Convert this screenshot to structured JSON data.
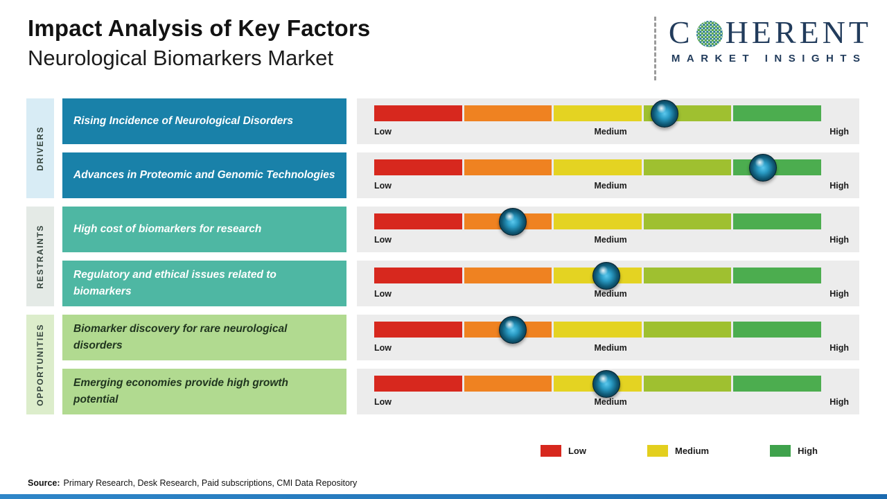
{
  "header": {
    "title": "Impact Analysis of Key Factors",
    "subtitle": "Neurological Biomarkers Market"
  },
  "logo": {
    "prefix": "C",
    "suffix": "HERENT",
    "subtitle": "MARKET INSIGHTS",
    "color": "#223c5c"
  },
  "scale": {
    "low": "Low",
    "medium": "Medium",
    "high": "High"
  },
  "bar_colors": [
    "#d7281e",
    "#ef8221",
    "#e4d322",
    "#9fc030",
    "#4cad4f"
  ],
  "chart_data": {
    "type": "scatter",
    "title": "Impact Analysis of Key Factors",
    "subtitle": "Neurological Biomarkers Market",
    "scale": {
      "min_label": "Low",
      "mid_label": "Medium",
      "max_label": "High",
      "range": [
        0,
        100
      ]
    },
    "groups": [
      "DRIVERS",
      "RESTRAINTS",
      "OPPORTUNITIES"
    ],
    "points": [
      {
        "group": "DRIVERS",
        "factor": "Rising Incidence of Neurological Disorders",
        "impact": 65
      },
      {
        "group": "DRIVERS",
        "factor": "Advances in Proteomic and Genomic Technologies",
        "impact": 87
      },
      {
        "group": "RESTRAINTS",
        "factor": "High cost of biomarkers for research",
        "impact": 31
      },
      {
        "group": "RESTRAINTS",
        "factor": "Regulatory and ethical issues related to biomarkers",
        "impact": 52
      },
      {
        "group": "OPPORTUNITIES",
        "factor": "Biomarker discovery for rare neurological disorders",
        "impact": 31
      },
      {
        "group": "OPPORTUNITIES",
        "factor": "Emerging economies provide high growth potential",
        "impact": 52
      }
    ]
  },
  "legend": [
    {
      "label": "Low",
      "color": "#d7281e"
    },
    {
      "label": "Medium",
      "color": "#e3cf1e"
    },
    {
      "label": "High",
      "color": "#3fa24c"
    }
  ],
  "source": {
    "label": "Source:",
    "text": "Primary Research, Desk Research, Paid subscriptions, CMI Data Repository"
  }
}
